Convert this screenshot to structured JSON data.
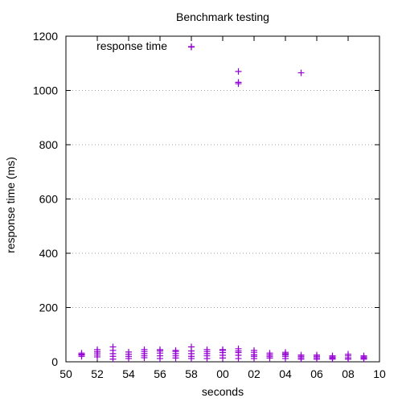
{
  "chart_data": {
    "type": "scatter",
    "title": "Benchmark testing",
    "xlabel": "seconds",
    "ylabel": "response time (ms)",
    "xlim": [
      50,
      70
    ],
    "ylim": [
      0,
      1200
    ],
    "x_tick_labels": [
      "50",
      "52",
      "54",
      "56",
      "58",
      "00",
      "02",
      "04",
      "06",
      "08",
      "10"
    ],
    "y_tick_labels": [
      "0",
      "200",
      "400",
      "600",
      "800",
      "1000",
      "1200"
    ],
    "grid": "horizontal dotted",
    "legend_position": "top-left",
    "color": "#9400d3",
    "series": [
      {
        "name": "response time",
        "points": [
          {
            "x": 51,
            "y": 20
          },
          {
            "x": 51,
            "y": 25
          },
          {
            "x": 51,
            "y": 28
          },
          {
            "x": 51,
            "y": 32
          },
          {
            "x": 52,
            "y": 18
          },
          {
            "x": 52,
            "y": 25
          },
          {
            "x": 52,
            "y": 32
          },
          {
            "x": 52,
            "y": 38
          },
          {
            "x": 52,
            "y": 45
          },
          {
            "x": 53,
            "y": 10
          },
          {
            "x": 53,
            "y": 20
          },
          {
            "x": 53,
            "y": 30
          },
          {
            "x": 53,
            "y": 42
          },
          {
            "x": 53,
            "y": 55
          },
          {
            "x": 54,
            "y": 12
          },
          {
            "x": 54,
            "y": 20
          },
          {
            "x": 54,
            "y": 28
          },
          {
            "x": 54,
            "y": 36
          },
          {
            "x": 55,
            "y": 15
          },
          {
            "x": 55,
            "y": 22
          },
          {
            "x": 55,
            "y": 30
          },
          {
            "x": 55,
            "y": 38
          },
          {
            "x": 55,
            "y": 45
          },
          {
            "x": 56,
            "y": 12
          },
          {
            "x": 56,
            "y": 22
          },
          {
            "x": 56,
            "y": 32
          },
          {
            "x": 56,
            "y": 40
          },
          {
            "x": 56,
            "y": 45
          },
          {
            "x": 57,
            "y": 14
          },
          {
            "x": 57,
            "y": 22
          },
          {
            "x": 57,
            "y": 30
          },
          {
            "x": 57,
            "y": 38
          },
          {
            "x": 57,
            "y": 42
          },
          {
            "x": 58,
            "y": 12
          },
          {
            "x": 58,
            "y": 20
          },
          {
            "x": 58,
            "y": 30
          },
          {
            "x": 58,
            "y": 40
          },
          {
            "x": 58,
            "y": 55
          },
          {
            "x": 58,
            "y": 1160
          },
          {
            "x": 59,
            "y": 12
          },
          {
            "x": 59,
            "y": 22
          },
          {
            "x": 59,
            "y": 30
          },
          {
            "x": 59,
            "y": 38
          },
          {
            "x": 59,
            "y": 45
          },
          {
            "x": 60,
            "y": 14
          },
          {
            "x": 60,
            "y": 24
          },
          {
            "x": 60,
            "y": 34
          },
          {
            "x": 60,
            "y": 42
          },
          {
            "x": 60,
            "y": 45
          },
          {
            "x": 61,
            "y": 12
          },
          {
            "x": 61,
            "y": 24
          },
          {
            "x": 61,
            "y": 34
          },
          {
            "x": 61,
            "y": 40
          },
          {
            "x": 61,
            "y": 48
          },
          {
            "x": 61,
            "y": 1025
          },
          {
            "x": 61,
            "y": 1030
          },
          {
            "x": 61,
            "y": 1070
          },
          {
            "x": 62,
            "y": 12
          },
          {
            "x": 62,
            "y": 20
          },
          {
            "x": 62,
            "y": 26
          },
          {
            "x": 62,
            "y": 35
          },
          {
            "x": 62,
            "y": 42
          },
          {
            "x": 63,
            "y": 14
          },
          {
            "x": 63,
            "y": 20
          },
          {
            "x": 63,
            "y": 26
          },
          {
            "x": 63,
            "y": 32
          },
          {
            "x": 64,
            "y": 12
          },
          {
            "x": 64,
            "y": 20
          },
          {
            "x": 64,
            "y": 26
          },
          {
            "x": 64,
            "y": 30
          },
          {
            "x": 64,
            "y": 35
          },
          {
            "x": 65,
            "y": 10
          },
          {
            "x": 65,
            "y": 15
          },
          {
            "x": 65,
            "y": 20
          },
          {
            "x": 65,
            "y": 25
          },
          {
            "x": 65,
            "y": 1065
          },
          {
            "x": 66,
            "y": 10
          },
          {
            "x": 66,
            "y": 15
          },
          {
            "x": 66,
            "y": 20
          },
          {
            "x": 66,
            "y": 25
          },
          {
            "x": 67,
            "y": 10
          },
          {
            "x": 67,
            "y": 14
          },
          {
            "x": 67,
            "y": 18
          },
          {
            "x": 67,
            "y": 22
          },
          {
            "x": 68,
            "y": 10
          },
          {
            "x": 68,
            "y": 15
          },
          {
            "x": 68,
            "y": 22
          },
          {
            "x": 68,
            "y": 28
          },
          {
            "x": 69,
            "y": 10
          },
          {
            "x": 69,
            "y": 14
          },
          {
            "x": 69,
            "y": 18
          },
          {
            "x": 69,
            "y": 22
          }
        ]
      }
    ]
  }
}
